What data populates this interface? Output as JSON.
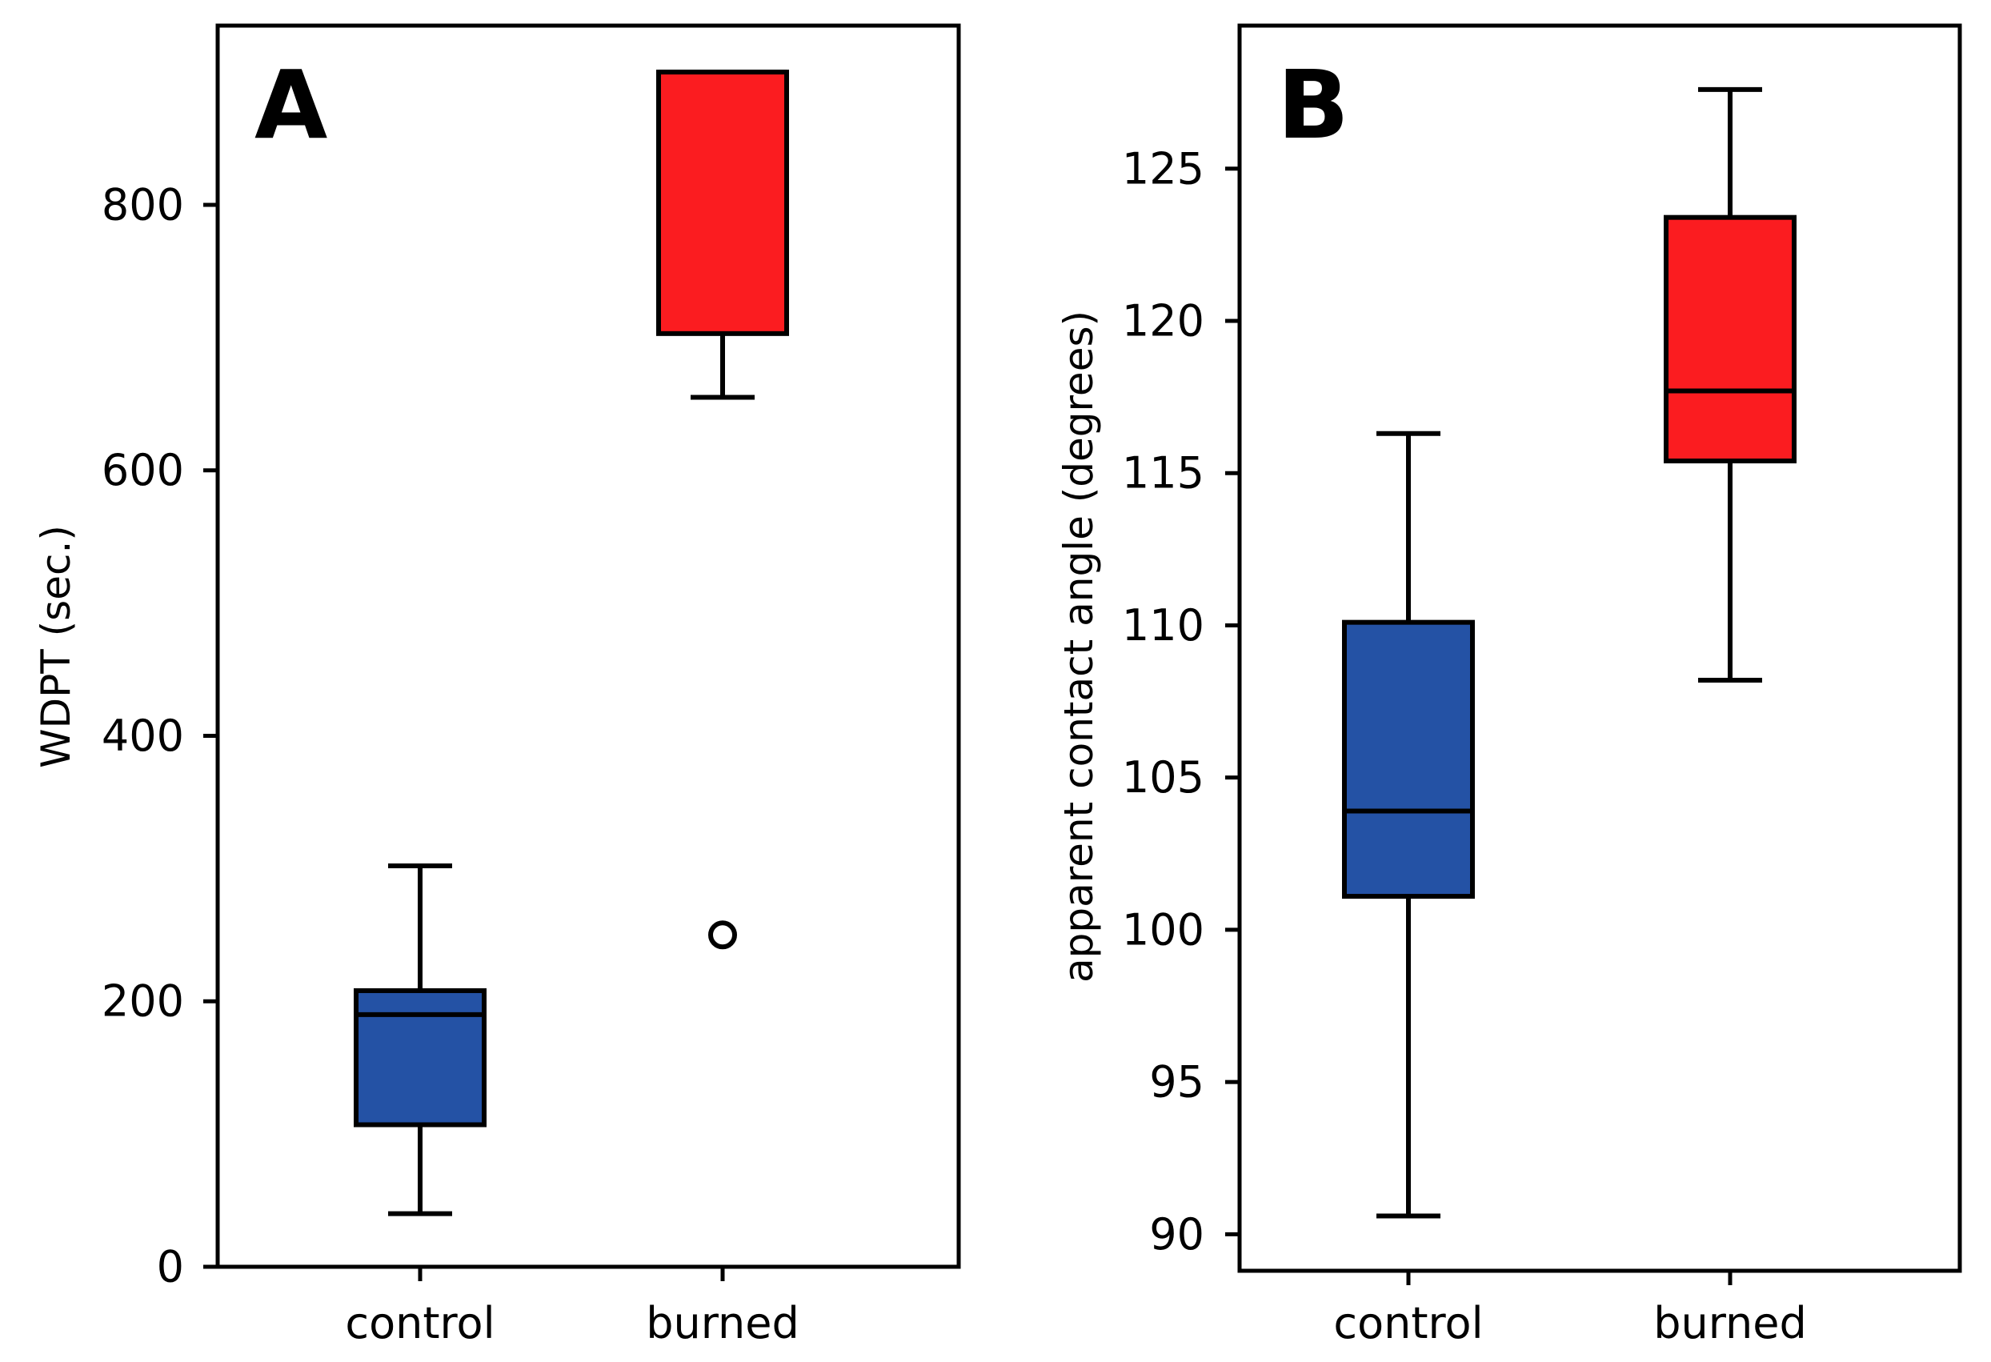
{
  "chart_data": [
    {
      "type": "box",
      "panel": "A",
      "title": "",
      "xlabel": "",
      "ylabel": "WDPT (sec.)",
      "ylim": [
        0,
        935
      ],
      "yticks": [
        0,
        200,
        400,
        600,
        800
      ],
      "categories": [
        "control",
        "burned"
      ],
      "boxes": [
        {
          "name": "control",
          "whislo": 40,
          "q1": 107,
          "median": 190,
          "q3": 208,
          "whishi": 302,
          "fliers": [],
          "color": "#2452a5"
        },
        {
          "name": "burned",
          "whislo": 655,
          "q1": 703,
          "median": 900,
          "q3": 900,
          "whishi": 900,
          "fliers": [
            250
          ],
          "color": "#fb1c20"
        }
      ]
    },
    {
      "type": "box",
      "panel": "B",
      "title": "",
      "xlabel": "",
      "ylabel": "apparent contact angle (degrees)",
      "ylim": [
        88.8,
        129.7
      ],
      "yticks": [
        90,
        95,
        100,
        105,
        110,
        115,
        120,
        125
      ],
      "categories": [
        "control",
        "burned"
      ],
      "boxes": [
        {
          "name": "control",
          "whislo": 90.6,
          "q1": 101.1,
          "median": 103.9,
          "q3": 110.1,
          "whishi": 116.3,
          "fliers": [],
          "color": "#2452a5"
        },
        {
          "name": "burned",
          "whislo": 108.2,
          "q1": 115.4,
          "median": 117.7,
          "q3": 123.4,
          "whishi": 127.6,
          "fliers": [],
          "color": "#fb1c20"
        }
      ]
    }
  ]
}
